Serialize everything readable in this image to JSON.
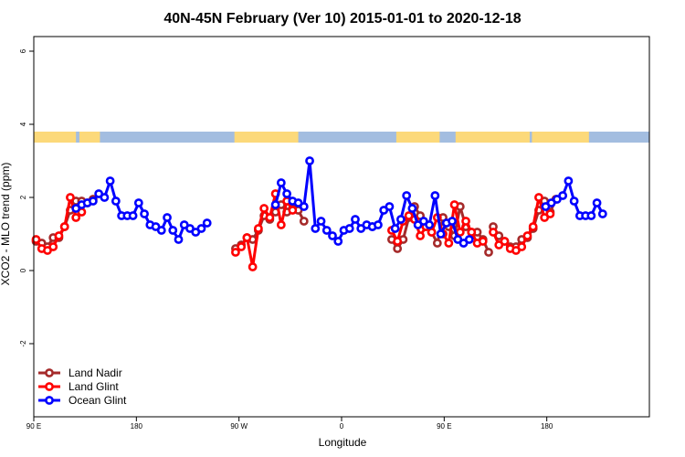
{
  "chart_data": {
    "type": "line",
    "title": "40N-45N February (Ver 10)   2015-01-01 to 2020-12-18",
    "xlabel": "Longitude",
    "ylabel": "XCO2 - MLO trend (ppm)",
    "xlim": [
      0,
      540
    ],
    "ylim": [
      -4,
      6.4
    ],
    "x_ticks": [
      {
        "value": 0,
        "label": "90 E"
      },
      {
        "value": 90,
        "label": "180"
      },
      {
        "value": 180,
        "label": "90 W"
      },
      {
        "value": 270,
        "label": "0"
      },
      {
        "value": 360,
        "label": "90 E"
      },
      {
        "value": 450,
        "label": "180"
      }
    ],
    "y_ticks": [
      {
        "value": -2,
        "label": "-2"
      },
      {
        "value": 0,
        "label": "0"
      },
      {
        "value": 2,
        "label": "2"
      },
      {
        "value": 4,
        "label": "4"
      },
      {
        "value": 6,
        "label": "6"
      }
    ],
    "land_ocean_band": {
      "y_range": [
        3.5,
        3.8
      ],
      "land_color": "#fcd97a",
      "ocean_color": "#a3bde0",
      "land_segments": [
        [
          0,
          37
        ],
        [
          40,
          58
        ],
        [
          176,
          232
        ],
        [
          318,
          356
        ],
        [
          370,
          435
        ],
        [
          437,
          487
        ]
      ]
    },
    "legend": {
      "position": "bottom-left",
      "entries": [
        "Land Nadir",
        "Land Glint",
        "Ocean Glint"
      ]
    },
    "series": [
      {
        "name": "Land Nadir",
        "color": "#a52a2a",
        "segments": [
          [
            [
              2,
              0.8
            ],
            [
              7,
              0.75
            ],
            [
              12,
              0.65
            ],
            [
              17,
              0.9
            ],
            [
              22,
              0.9
            ],
            [
              27,
              1.2
            ],
            [
              32,
              1.65
            ],
            [
              37,
              1.9
            ],
            [
              42,
              1.9
            ],
            [
              47,
              1.85
            ],
            [
              52,
              1.95
            ]
          ],
          [
            [
              177,
              0.6
            ],
            [
              182,
              0.7
            ],
            [
              187,
              0.9
            ],
            [
              192,
              0.85
            ],
            [
              197,
              1.1
            ],
            [
              202,
              1.5
            ],
            [
              207,
              1.4
            ],
            [
              212,
              1.6
            ],
            [
              217,
              1.8
            ],
            [
              222,
              1.6
            ],
            [
              227,
              1.85
            ],
            [
              232,
              1.65
            ],
            [
              237,
              1.35
            ]
          ],
          [
            [
              314,
              0.85
            ],
            [
              319,
              0.6
            ],
            [
              324,
              0.85
            ],
            [
              329,
              1.45
            ],
            [
              334,
              1.75
            ],
            [
              339,
              1.5
            ],
            [
              344,
              1.2
            ],
            [
              349,
              1.05
            ],
            [
              354,
              0.75
            ],
            [
              359,
              1.45
            ],
            [
              364,
              1.2
            ],
            [
              369,
              0.95
            ],
            [
              374,
              1.75
            ],
            [
              379,
              1.2
            ],
            [
              384,
              1.05
            ],
            [
              389,
              1.05
            ],
            [
              394,
              0.85
            ],
            [
              399,
              0.5
            ]
          ],
          [
            [
              403,
              1.2
            ],
            [
              408,
              0.95
            ],
            [
              413,
              0.8
            ],
            [
              418,
              0.65
            ],
            [
              423,
              0.65
            ],
            [
              428,
              0.85
            ],
            [
              433,
              0.9
            ],
            [
              438,
              1.15
            ],
            [
              443,
              1.65
            ],
            [
              448,
              1.9
            ],
            [
              453,
              1.6
            ],
            [
              458,
              1.95
            ]
          ]
        ]
      },
      {
        "name": "Land Glint",
        "color": "#ff0000",
        "segments": [
          [
            [
              2,
              0.85
            ],
            [
              7,
              0.6
            ],
            [
              12,
              0.55
            ],
            [
              17,
              0.65
            ],
            [
              22,
              0.95
            ],
            [
              27,
              1.2
            ],
            [
              32,
              2.0
            ],
            [
              37,
              1.45
            ],
            [
              42,
              1.6
            ]
          ],
          [
            [
              177,
              0.5
            ],
            [
              182,
              0.65
            ],
            [
              187,
              0.9
            ],
            [
              192,
              0.1
            ],
            [
              197,
              1.15
            ],
            [
              202,
              1.7
            ],
            [
              207,
              1.45
            ],
            [
              212,
              2.1
            ],
            [
              217,
              1.25
            ],
            [
              222,
              1.9
            ],
            [
              227,
              1.65
            ]
          ],
          [
            [
              314,
              1.1
            ],
            [
              319,
              0.8
            ],
            [
              324,
              1.35
            ],
            [
              329,
              1.5
            ],
            [
              334,
              1.4
            ],
            [
              339,
              0.95
            ],
            [
              344,
              1.2
            ],
            [
              349,
              1.05
            ],
            [
              354,
              1.45
            ],
            [
              359,
              1.0
            ],
            [
              364,
              0.75
            ],
            [
              369,
              1.8
            ],
            [
              374,
              1.05
            ],
            [
              379,
              1.35
            ],
            [
              384,
              1.05
            ],
            [
              389,
              0.75
            ],
            [
              394,
              0.8
            ]
          ],
          [
            [
              403,
              1.05
            ],
            [
              408,
              0.7
            ],
            [
              413,
              0.8
            ],
            [
              418,
              0.6
            ],
            [
              423,
              0.55
            ],
            [
              428,
              0.65
            ],
            [
              433,
              0.95
            ],
            [
              438,
              1.2
            ],
            [
              443,
              2.0
            ],
            [
              448,
              1.45
            ],
            [
              453,
              1.55
            ]
          ]
        ]
      },
      {
        "name": "Ocean Glint",
        "color": "#0000ff",
        "segments": [
          [
            [
              37,
              1.7
            ],
            [
              42,
              1.8
            ],
            [
              47,
              1.85
            ],
            [
              52,
              1.9
            ],
            [
              57,
              2.1
            ],
            [
              62,
              2.0
            ],
            [
              67,
              2.45
            ],
            [
              72,
              1.9
            ],
            [
              77,
              1.5
            ],
            [
              82,
              1.5
            ],
            [
              87,
              1.5
            ],
            [
              92,
              1.85
            ],
            [
              97,
              1.55
            ],
            [
              102,
              1.25
            ],
            [
              107,
              1.2
            ],
            [
              112,
              1.1
            ],
            [
              117,
              1.45
            ],
            [
              122,
              1.1
            ],
            [
              127,
              0.85
            ],
            [
              132,
              1.25
            ],
            [
              137,
              1.15
            ],
            [
              142,
              1.05
            ],
            [
              147,
              1.15
            ],
            [
              152,
              1.3
            ]
          ],
          [
            [
              212,
              1.8
            ],
            [
              217,
              2.4
            ],
            [
              222,
              2.1
            ],
            [
              227,
              1.9
            ],
            [
              232,
              1.85
            ],
            [
              237,
              1.75
            ],
            [
              242,
              3.0
            ],
            [
              247,
              1.15
            ],
            [
              252,
              1.35
            ],
            [
              257,
              1.1
            ],
            [
              262,
              0.95
            ],
            [
              267,
              0.8
            ],
            [
              272,
              1.1
            ],
            [
              277,
              1.15
            ],
            [
              282,
              1.4
            ],
            [
              287,
              1.15
            ],
            [
              292,
              1.25
            ],
            [
              297,
              1.2
            ]
          ],
          [
            [
              297,
              1.2
            ],
            [
              302,
              1.25
            ],
            [
              307,
              1.65
            ],
            [
              312,
              1.75
            ],
            [
              317,
              1.15
            ],
            [
              322,
              1.4
            ],
            [
              327,
              2.05
            ],
            [
              332,
              1.7
            ],
            [
              337,
              1.25
            ],
            [
              342,
              1.35
            ],
            [
              347,
              1.25
            ],
            [
              352,
              2.05
            ],
            [
              357,
              1.0
            ],
            [
              362,
              1.3
            ],
            [
              367,
              1.35
            ],
            [
              372,
              0.85
            ],
            [
              377,
              0.75
            ],
            [
              382,
              0.85
            ]
          ],
          [
            [
              449,
              1.75
            ],
            [
              454,
              1.85
            ],
            [
              459,
              1.95
            ],
            [
              464,
              2.05
            ],
            [
              469,
              2.45
            ],
            [
              474,
              1.9
            ],
            [
              479,
              1.5
            ],
            [
              484,
              1.5
            ],
            [
              489,
              1.5
            ],
            [
              494,
              1.85
            ],
            [
              499,
              1.55
            ]
          ]
        ]
      }
    ]
  }
}
